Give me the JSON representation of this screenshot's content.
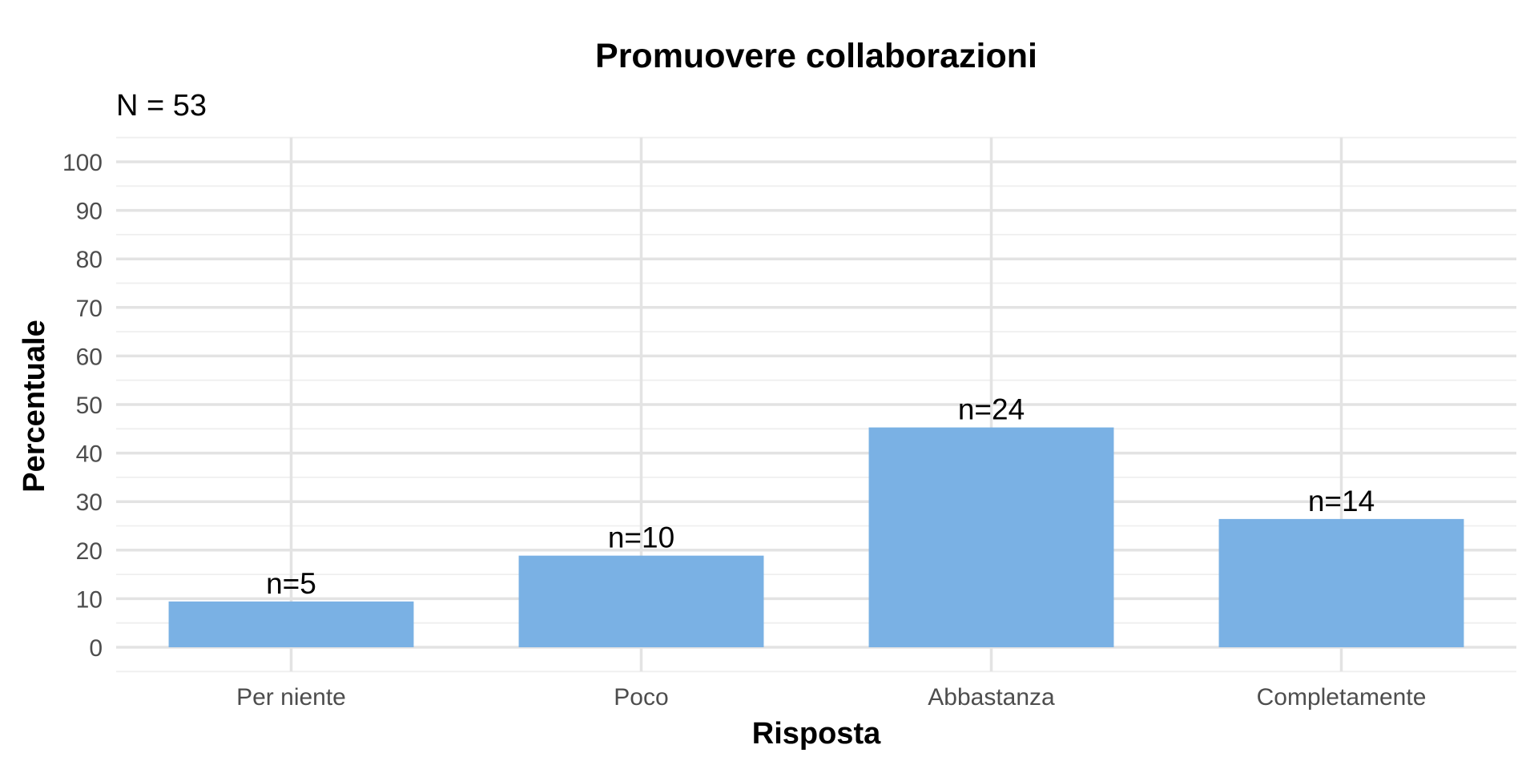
{
  "chart_data": {
    "type": "bar",
    "title": "Promuovere collaborazioni",
    "subtitle": "N = 53",
    "xlabel": "Risposta",
    "ylabel": "Percentuale",
    "categories": [
      "Per niente",
      "Poco",
      "Abbastanza",
      "Completamente"
    ],
    "values": [
      9.43,
      18.87,
      45.28,
      26.42
    ],
    "counts": [
      5,
      10,
      24,
      14
    ],
    "data_labels": [
      "n=5",
      "n=10",
      "n=24",
      "n=14"
    ],
    "ylim": [
      0,
      100
    ],
    "yticks": [
      0,
      10,
      20,
      30,
      40,
      50,
      60,
      70,
      80,
      90,
      100
    ],
    "grid": true,
    "bar_color": "#7ab1e4"
  }
}
